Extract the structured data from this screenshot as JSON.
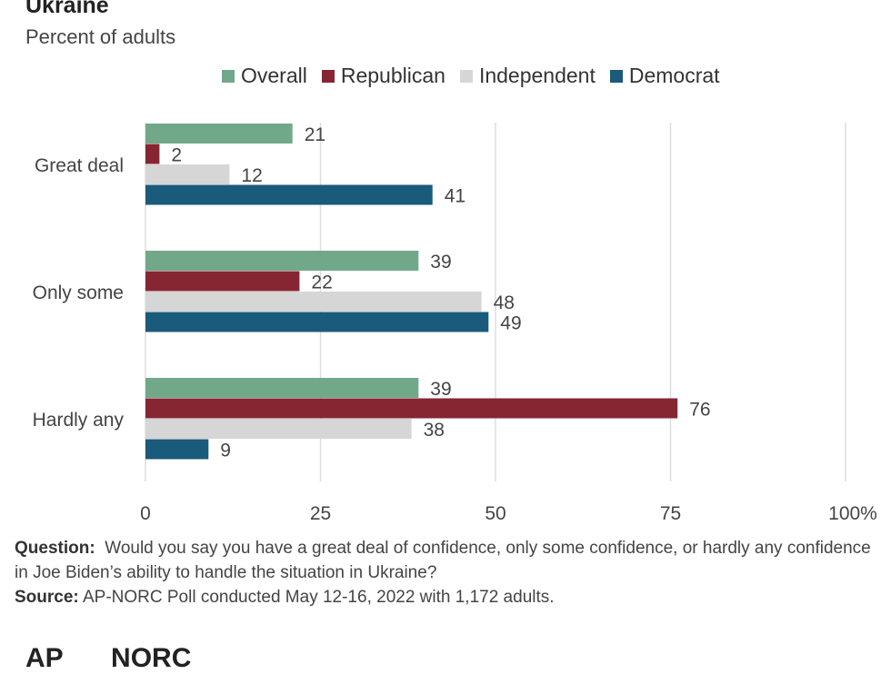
{
  "header": {
    "title": "Ukraine",
    "subtitle": "Percent of adults"
  },
  "chart_data": {
    "type": "bar",
    "orientation": "horizontal",
    "title": "Ukraine",
    "subtitle": "Percent of adults",
    "categories": [
      "Great deal",
      "Only some",
      "Hardly any"
    ],
    "series": [
      {
        "name": "Overall",
        "color": "#72a88a",
        "values": [
          21,
          39,
          39
        ]
      },
      {
        "name": "Republican",
        "color": "#862633",
        "values": [
          2,
          22,
          76
        ]
      },
      {
        "name": "Independent",
        "color": "#d6d6d6",
        "values": [
          12,
          48,
          38
        ]
      },
      {
        "name": "Democrat",
        "color": "#1a5a7a",
        "values": [
          41,
          49,
          9
        ]
      }
    ],
    "xticks": [
      "0",
      "25",
      "50",
      "75",
      "100%"
    ],
    "xlim": [
      0,
      100
    ],
    "grid": true,
    "legend_position": "top"
  },
  "notes": {
    "question_label": "Question:",
    "question_text": "Would you say you have a great deal of confidence, only some confidence, or hardly any confidence in Joe Biden’s ability to handle the situation in Ukraine?",
    "source_label": "Source:",
    "source_text": "AP-NORC Poll conducted May 12-16, 2022 with 1,172 adults."
  },
  "logos": {
    "ap": "AP",
    "norc": "NORC"
  }
}
